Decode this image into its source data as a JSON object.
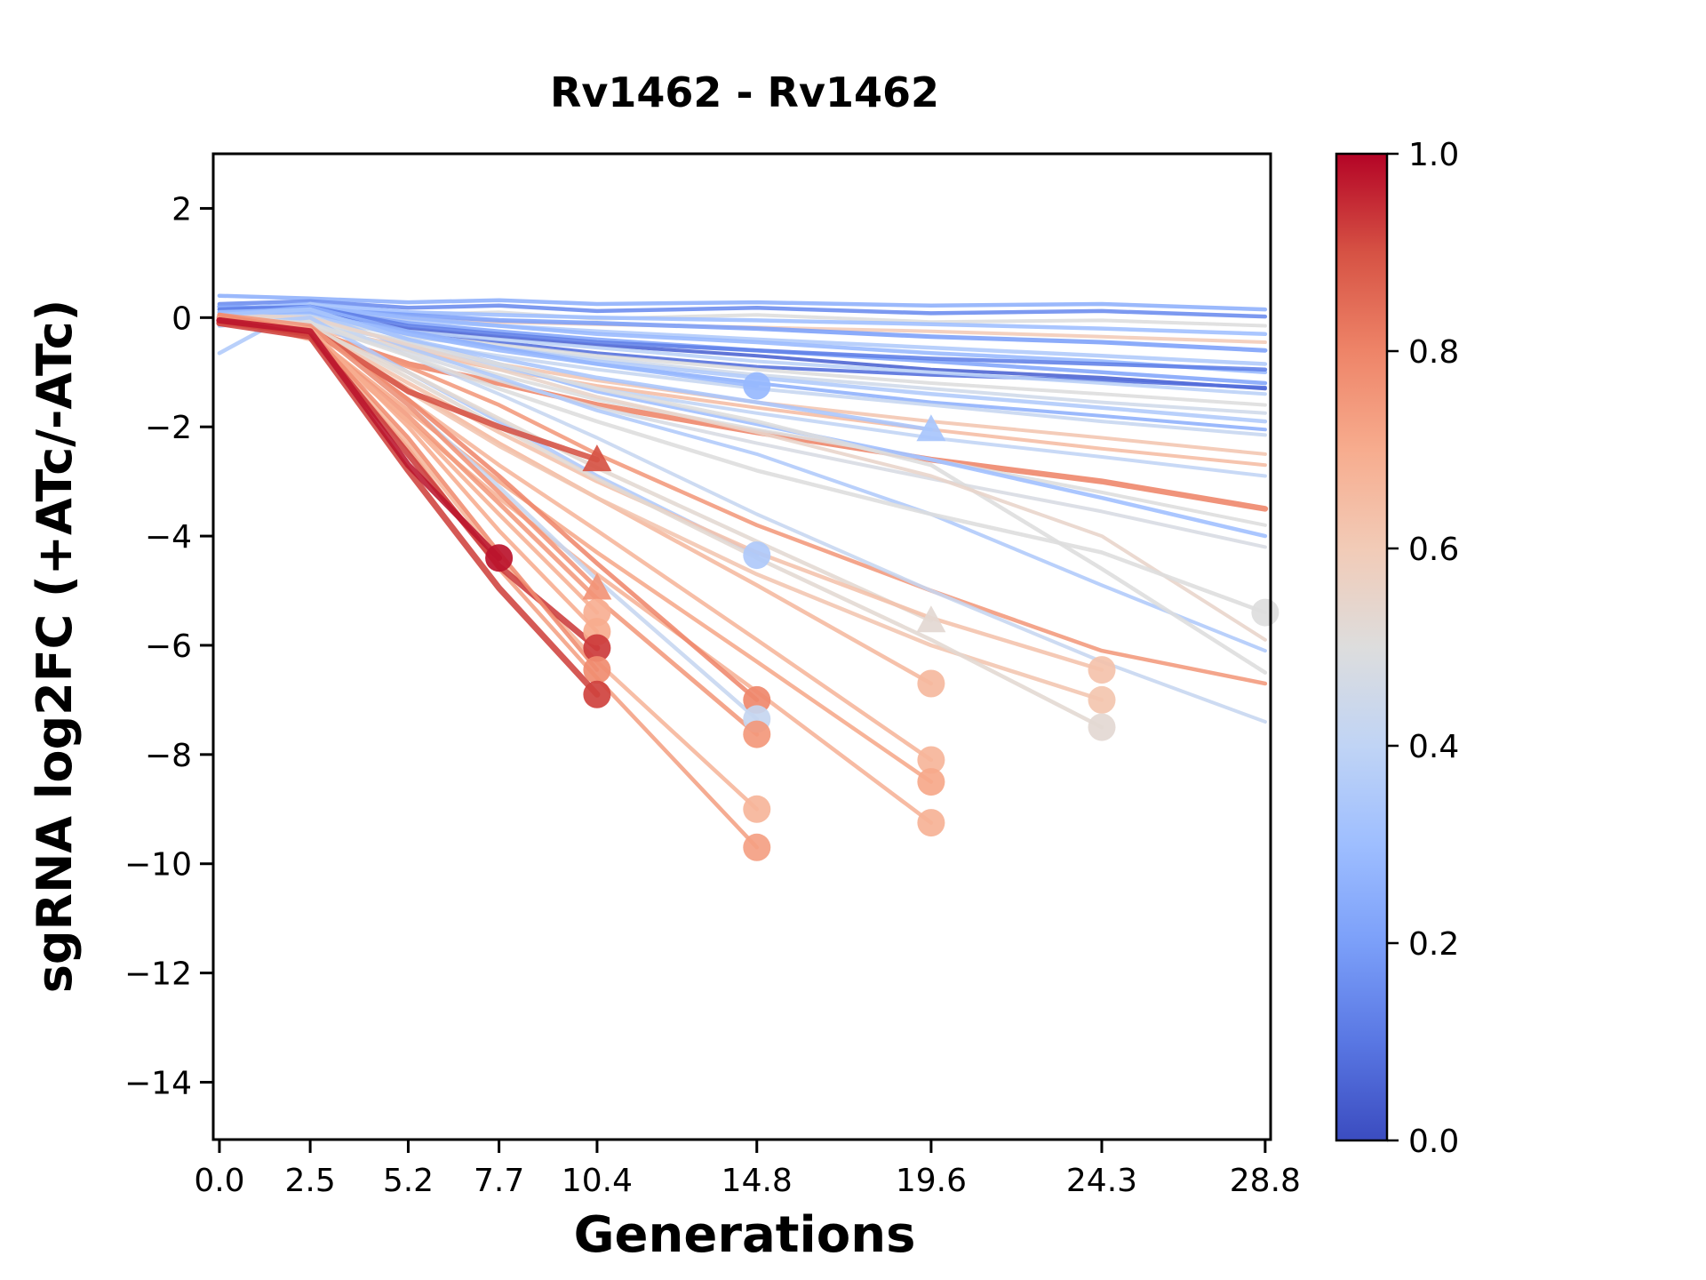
{
  "figure": {
    "background": "#ffffff"
  },
  "title": "Rv1462 - Rv1462",
  "xlabel": "Generations",
  "ylabel": "sgRNA log2FC (+ATc/-ATc)",
  "colorbar": {
    "orientation": "vertical",
    "range": [
      0.0,
      1.0
    ],
    "tick_values": [
      1.0,
      0.8,
      0.6,
      0.4,
      0.2,
      0.0
    ],
    "tick_labels": [
      "1.0",
      "0.8",
      "0.6",
      "0.4",
      "0.2",
      "0.0"
    ]
  },
  "chart_data": {
    "type": "line",
    "title": "Rv1462 - Rv1462",
    "xlabel": "Generations",
    "ylabel": "sgRNA log2FC (+ATc/-ATc)",
    "x_ticks": [
      0.0,
      2.5,
      5.2,
      7.7,
      10.4,
      14.8,
      19.6,
      24.3,
      28.8
    ],
    "x_tick_labels": [
      "0.0",
      "2.5",
      "5.2",
      "7.7",
      "10.4",
      "14.8",
      "19.6",
      "24.3",
      "28.8"
    ],
    "y_ticks": [
      2,
      0,
      -2,
      -4,
      -6,
      -8,
      -10,
      -12,
      -14
    ],
    "y_tick_labels": [
      "2",
      "0",
      "−2",
      "−4",
      "−6",
      "−8",
      "−10",
      "−12",
      "−14"
    ],
    "xlim": [
      -0.17,
      28.95
    ],
    "ylim": [
      -15.05,
      3.0
    ],
    "grid": false,
    "legend": "colorbar 0.0-1.0, coolwarm",
    "colormap": "coolwarm",
    "colormap_stops": [
      "#3b4cc0",
      "#5977e3",
      "#7b9ff9",
      "#9ebeff",
      "#c0d4f5",
      "#dddddd",
      "#f2cbb7",
      "#f7ac8e",
      "#ee8468",
      "#d65244",
      "#b40426"
    ],
    "marker_meaning": "circle/triangle = sgRNA last detected timepoint; unmarked lines persist to 28.8 generations",
    "x_points": [
      0,
      2.5,
      5.2,
      7.7,
      10.4,
      14.8,
      19.6,
      24.3,
      28.8
    ],
    "series": [
      {
        "c": 0.25,
        "marker": null,
        "lw": 4.5,
        "y": [
          0.4,
          0.35,
          0.28,
          0.32,
          0.25,
          0.28,
          0.22,
          0.25,
          0.15
        ]
      },
      {
        "c": 0.15,
        "marker": null,
        "lw": 4.5,
        "y": [
          0.25,
          0.3,
          0.18,
          0.22,
          0.12,
          0.18,
          0.08,
          0.12,
          0.02
        ]
      },
      {
        "c": 0.5,
        "marker": null,
        "lw": 4.0,
        "y": [
          0.1,
          0.15,
          0.05,
          0.1,
          -0.02,
          0.05,
          -0.08,
          -0.05,
          -0.15
        ]
      },
      {
        "c": 0.3,
        "marker": null,
        "lw": 4.5,
        "y": [
          0.15,
          0.25,
          0.1,
          0.05,
          0.0,
          -0.05,
          -0.12,
          -0.2,
          -0.3
        ]
      },
      {
        "c": 0.6,
        "marker": null,
        "lw": 4.0,
        "y": [
          0.05,
          0.1,
          -0.02,
          -0.08,
          -0.12,
          -0.18,
          -0.25,
          -0.35,
          -0.45
        ]
      },
      {
        "c": 0.2,
        "marker": null,
        "lw": 5.0,
        "y": [
          0.2,
          0.15,
          0.05,
          -0.05,
          -0.1,
          -0.2,
          -0.35,
          -0.45,
          -0.6
        ]
      },
      {
        "c": 0.35,
        "marker": null,
        "lw": 4.5,
        "y": [
          -0.65,
          0.25,
          -0.05,
          -0.15,
          -0.25,
          -0.4,
          -0.55,
          -0.7,
          -0.85
        ]
      },
      {
        "c": 0.28,
        "marker": null,
        "lw": 4.5,
        "y": [
          0.1,
          0.2,
          0.0,
          -0.15,
          -0.3,
          -0.45,
          -0.65,
          -0.8,
          -1.0
        ]
      },
      {
        "c": 0.22,
        "marker": null,
        "lw": 4.5,
        "y": [
          0.05,
          0.15,
          -0.1,
          -0.25,
          -0.4,
          -0.6,
          -0.8,
          -1.0,
          -1.2
        ]
      },
      {
        "c": 0.05,
        "marker": null,
        "lw": 4.0,
        "y": [
          0.0,
          0.1,
          -0.2,
          -0.35,
          -0.5,
          -0.7,
          -0.95,
          -1.1,
          -1.3
        ]
      },
      {
        "c": 0.12,
        "marker": null,
        "lw": 4.5,
        "y": [
          0.15,
          0.2,
          -0.15,
          -0.3,
          -0.45,
          -0.6,
          -0.75,
          -0.85,
          -0.95
        ]
      },
      {
        "c": 0.08,
        "marker": null,
        "lw": 4.0,
        "y": [
          0.1,
          0.12,
          -0.25,
          -0.45,
          -0.65,
          -0.9,
          -1.05,
          -1.15,
          -1.28
        ]
      },
      {
        "c": 0.38,
        "marker": null,
        "lw": 4.0,
        "y": [
          -0.1,
          0.05,
          -0.25,
          -0.4,
          -0.55,
          -0.8,
          -1.0,
          -1.2,
          -1.4
        ]
      },
      {
        "c": 0.5,
        "marker": null,
        "lw": 4.0,
        "y": [
          0.0,
          -0.05,
          -0.3,
          -0.5,
          -0.7,
          -0.95,
          -1.2,
          -1.4,
          -1.6
        ]
      },
      {
        "c": 0.45,
        "marker": null,
        "lw": 4.0,
        "y": [
          -0.05,
          0.0,
          -0.35,
          -0.55,
          -0.75,
          -1.05,
          -1.3,
          -1.55,
          -1.75
        ]
      },
      {
        "c": 0.35,
        "marker": null,
        "lw": 4.5,
        "y": [
          0.1,
          0.05,
          -0.3,
          -0.55,
          -0.8,
          -1.1,
          -1.4,
          -1.65,
          -1.9
        ]
      },
      {
        "c": 0.25,
        "marker": null,
        "lw": 4.0,
        "y": [
          0.05,
          0.2,
          -0.25,
          -0.55,
          -0.85,
          -1.2,
          -1.55,
          -1.8,
          -2.05
        ]
      },
      {
        "c": 0.42,
        "marker": null,
        "lw": 4.0,
        "y": [
          -0.05,
          -0.1,
          -0.45,
          -0.7,
          -0.95,
          -1.3,
          -1.6,
          -1.9,
          -2.15
        ]
      },
      {
        "c": 0.62,
        "marker": null,
        "lw": 4.0,
        "y": [
          0.0,
          -0.15,
          -0.55,
          -0.85,
          -1.15,
          -1.55,
          -1.9,
          -2.2,
          -2.5
        ]
      },
      {
        "c": 0.65,
        "marker": null,
        "lw": 4.0,
        "y": [
          0.05,
          -0.2,
          -0.6,
          -0.95,
          -1.25,
          -1.65,
          -2.05,
          -2.4,
          -2.7
        ]
      },
      {
        "c": 0.4,
        "marker": null,
        "lw": 4.0,
        "y": [
          -0.1,
          0.0,
          -0.5,
          -0.9,
          -1.3,
          -1.75,
          -2.2,
          -2.55,
          -2.9
        ]
      },
      {
        "c": 0.8,
        "marker": null,
        "lw": 6.5,
        "y": [
          0.0,
          -0.25,
          -0.85,
          -1.2,
          -1.6,
          -2.1,
          -2.6,
          -3.0,
          -3.5
        ]
      },
      {
        "c": 0.5,
        "marker": null,
        "lw": 4.0,
        "y": [
          0.05,
          -0.1,
          -0.6,
          -1.05,
          -1.5,
          -2.05,
          -2.6,
          -3.2,
          -3.8
        ]
      },
      {
        "c": 0.3,
        "marker": null,
        "lw": 4.5,
        "y": [
          0.1,
          0.15,
          -0.4,
          -0.85,
          -1.35,
          -1.95,
          -2.6,
          -3.3,
          -4.0
        ]
      },
      {
        "c": 0.48,
        "marker": null,
        "lw": 4.0,
        "y": [
          -0.05,
          -0.15,
          -0.65,
          -1.15,
          -1.65,
          -2.3,
          -2.95,
          -3.55,
          -4.2
        ]
      },
      {
        "c": 0.35,
        "marker": null,
        "lw": 4.0,
        "y": [
          0.0,
          0.1,
          -0.55,
          -1.1,
          -1.7,
          -2.5,
          -3.6,
          -4.9,
          -6.1
        ]
      },
      {
        "c": 0.75,
        "marker": null,
        "lw": 4.5,
        "y": [
          0.05,
          -0.2,
          -0.9,
          -1.6,
          -2.5,
          -3.8,
          -5.0,
          -6.1,
          -6.7
        ]
      },
      {
        "c": 0.42,
        "marker": null,
        "lw": 4.0,
        "y": [
          -0.05,
          0.05,
          -0.7,
          -1.4,
          -2.2,
          -3.6,
          -5.0,
          -6.3,
          -7.4
        ]
      },
      {
        "c": 0.5,
        "marker": null,
        "lw": 4.5,
        "y": [
          0.0,
          -0.05,
          -0.45,
          -0.85,
          -1.3,
          -1.9,
          -2.7,
          -4.6,
          -6.5
        ]
      },
      {
        "c": 0.55,
        "marker": null,
        "lw": 4.0,
        "y": [
          0.05,
          0.0,
          -0.5,
          -0.95,
          -1.45,
          -2.1,
          -2.9,
          -4.0,
          -5.9
        ]
      },
      {
        "c": 0.28,
        "marker": "circle",
        "lw": 4.5,
        "y": [
          0.1,
          0.1,
          -0.3,
          -0.6,
          -0.85,
          -1.25
        ]
      },
      {
        "c": 0.33,
        "marker": "triangle",
        "lw": 4.5,
        "y": [
          0.05,
          0.15,
          -0.4,
          -0.75,
          -1.1,
          -1.55,
          -2.05
        ]
      },
      {
        "c": 0.35,
        "marker": "circle",
        "lw": 4.5,
        "y": [
          -0.15,
          0.0,
          -1.0,
          -1.9,
          -2.9,
          -4.35
        ]
      },
      {
        "c": 0.53,
        "marker": "triangle",
        "lw": 4.5,
        "y": [
          -0.1,
          -0.2,
          -1.0,
          -1.85,
          -2.75,
          -4.1,
          -5.55
        ]
      },
      {
        "c": 0.66,
        "marker": "circle",
        "lw": 4.5,
        "y": [
          0.0,
          -0.25,
          -1.3,
          -2.3,
          -3.3,
          -4.9,
          -6.7
        ]
      },
      {
        "c": 0.67,
        "marker": "circle",
        "lw": 4.5,
        "y": [
          -0.05,
          -0.2,
          -1.5,
          -2.7,
          -3.9,
          -5.9,
          -8.1
        ]
      },
      {
        "c": 0.71,
        "marker": "circle",
        "lw": 4.5,
        "y": [
          0.05,
          -0.3,
          -1.7,
          -3.0,
          -4.3,
          -6.3,
          -8.5
        ]
      },
      {
        "c": 0.68,
        "marker": "circle",
        "lw": 4.5,
        "y": [
          0.0,
          -0.4,
          -1.9,
          -3.3,
          -4.7,
          -6.85,
          -9.25
        ]
      },
      {
        "c": 0.63,
        "marker": "circle",
        "lw": 4.5,
        "y": [
          -0.1,
          -0.2,
          -1.2,
          -2.1,
          -3.0,
          -4.3,
          -5.5,
          -6.45
        ]
      },
      {
        "c": 0.62,
        "marker": "circle",
        "lw": 4.5,
        "y": [
          0.05,
          -0.25,
          -1.35,
          -2.35,
          -3.3,
          -4.7,
          -6.0,
          -7.0
        ]
      },
      {
        "c": 0.53,
        "marker": "circle",
        "lw": 4.5,
        "y": [
          -0.05,
          -0.15,
          -1.1,
          -2.0,
          -2.95,
          -4.4,
          -5.9,
          -7.5
        ]
      },
      {
        "c": 0.5,
        "marker": "circle",
        "lw": 4.5,
        "y": [
          0.0,
          -0.1,
          -0.7,
          -1.3,
          -1.9,
          -2.8,
          -3.6,
          -4.3,
          -5.4
        ]
      },
      {
        "c": 0.79,
        "marker": "circle",
        "lw": 5.0,
        "y": [
          0.0,
          -0.2,
          -1.5,
          -2.9,
          -4.5,
          -7.0
        ]
      },
      {
        "c": 0.42,
        "marker": "circle",
        "lw": 4.5,
        "y": [
          -0.1,
          -0.15,
          -1.6,
          -3.1,
          -4.8,
          -7.35
        ]
      },
      {
        "c": 0.75,
        "marker": "circle",
        "lw": 5.0,
        "y": [
          0.05,
          -0.3,
          -1.8,
          -3.4,
          -5.15,
          -7.63
        ]
      },
      {
        "c": 0.67,
        "marker": "circle",
        "lw": 4.5,
        "y": [
          -0.05,
          -0.25,
          -2.3,
          -4.4,
          -6.3,
          -9.0
        ]
      },
      {
        "c": 0.73,
        "marker": "circle",
        "lw": 4.5,
        "y": [
          0.0,
          -0.35,
          -2.4,
          -4.6,
          -6.6,
          -9.7
        ]
      },
      {
        "c": 0.9,
        "marker": "triangle",
        "lw": 6.5,
        "y": [
          -0.1,
          -0.2,
          -1.35,
          -2.0,
          -2.6
        ]
      },
      {
        "c": 0.76,
        "marker": "triangle",
        "lw": 5.0,
        "y": [
          0.05,
          -0.15,
          -1.6,
          -3.2,
          -4.95
        ]
      },
      {
        "c": 0.69,
        "marker": "circle",
        "lw": 4.5,
        "y": [
          -0.1,
          -0.3,
          -1.9,
          -3.6,
          -5.4
        ]
      },
      {
        "c": 0.7,
        "marker": "circle",
        "lw": 4.5,
        "y": [
          0.0,
          -0.2,
          -2.0,
          -3.9,
          -5.75
        ]
      },
      {
        "c": 0.93,
        "marker": "circle",
        "lw": 7.0,
        "y": [
          -0.05,
          -0.3,
          -2.5,
          -4.55,
          -6.05
        ]
      },
      {
        "c": 0.78,
        "marker": "circle",
        "lw": 4.5,
        "y": [
          0.05,
          -0.25,
          -2.2,
          -4.3,
          -6.45
        ]
      },
      {
        "c": 0.92,
        "marker": "circle",
        "lw": 7.0,
        "y": [
          -0.1,
          -0.35,
          -2.8,
          -4.95,
          -6.9
        ]
      },
      {
        "c": 0.98,
        "marker": "circle",
        "lw": 7.0,
        "y": [
          -0.05,
          -0.25,
          -2.7,
          -4.4
        ]
      }
    ]
  }
}
